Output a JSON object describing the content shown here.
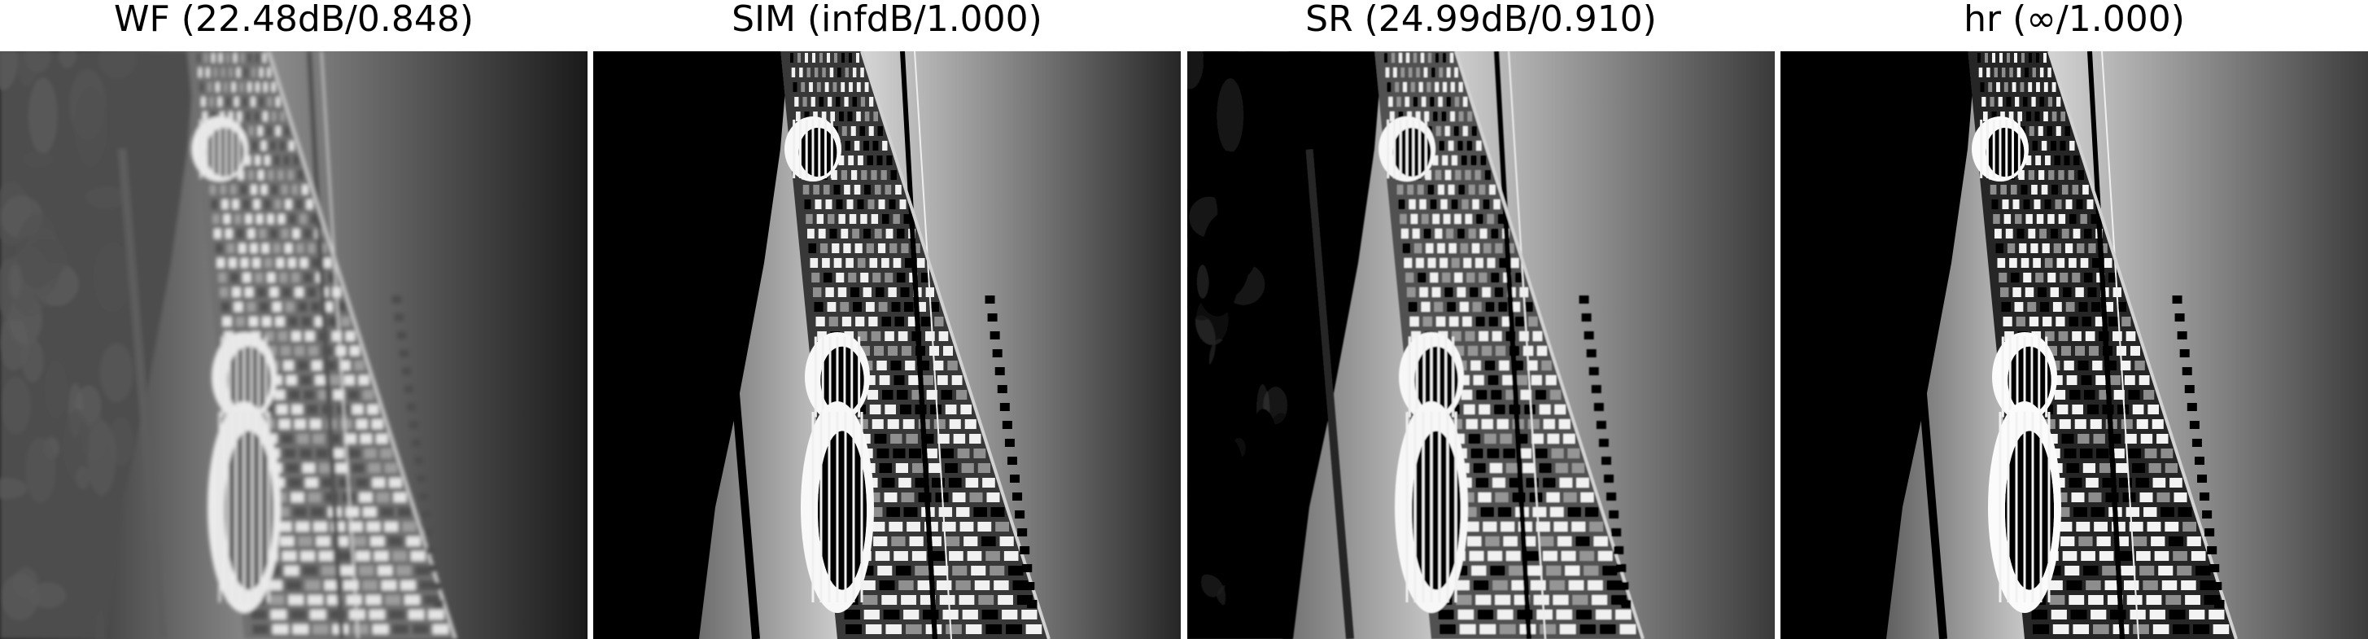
{
  "figure": {
    "panels": [
      {
        "title": "WF (22.48dB/0.848)",
        "image_icon": "city-street-photo-icon",
        "sky": {
          "dark": "#1a1a1a",
          "light": "#8e8e8e"
        },
        "blur": 2.4,
        "contrast": 0.85,
        "bright": 1.0
      },
      {
        "title": "SIM (infdB/1.000)",
        "image_icon": "city-street-photo-icon",
        "sky": {
          "dark": "#262626",
          "light": "#d9d9d9"
        },
        "blur": 0.3,
        "contrast": 1.15,
        "bright": 1.0
      },
      {
        "title": "SR (24.99dB/0.910)",
        "image_icon": "city-street-photo-icon",
        "sky": {
          "dark": "#3a3a3a",
          "light": "#cfcfcf"
        },
        "blur": 0.7,
        "contrast": 1.05,
        "bright": 1.03
      },
      {
        "title": "hr (∞/1.000)",
        "image_icon": "city-street-photo-icon",
        "sky": {
          "dark": "#111111",
          "light": "#d6d6d6"
        },
        "blur": 0.0,
        "contrast": 1.2,
        "bright": 1.0
      }
    ]
  }
}
